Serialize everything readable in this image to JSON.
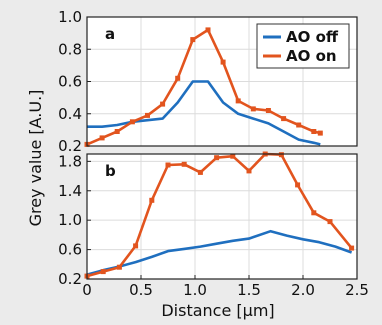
{
  "chart_data": {
    "type": "line",
    "xlabel": "Distance [μm]",
    "ylabel": "Grey value [A.U.]",
    "xlim": [
      0,
      2.5
    ],
    "x_ticks": [
      "0",
      "0.5",
      "1.0",
      "1.5",
      "2.0",
      "2.5"
    ],
    "grid": true,
    "legend": {
      "placement": "top-right",
      "entries": [
        {
          "name": "AO off",
          "color": "#1f6fbf"
        },
        {
          "name": "AO on",
          "color": "#e2541e"
        }
      ]
    },
    "panels": [
      {
        "label": "a",
        "ylim": [
          0.2,
          1.0
        ],
        "y_ticks": [
          "0.2",
          "0.4",
          "0.6",
          "0.8",
          "1.0"
        ],
        "series": [
          {
            "name": "AO off",
            "color": "#1f6fbf",
            "markers": false,
            "x": [
              0,
              0.14,
              0.28,
              0.42,
              0.56,
              0.7,
              0.84,
              0.98,
              1.12,
              1.26,
              1.4,
              1.54,
              1.68,
              1.82,
              1.96,
              2.1,
              2.16
            ],
            "y": [
              0.32,
              0.32,
              0.33,
              0.35,
              0.36,
              0.37,
              0.47,
              0.6,
              0.6,
              0.47,
              0.4,
              0.37,
              0.34,
              0.29,
              0.24,
              0.22,
              0.21
            ]
          },
          {
            "name": "AO on",
            "color": "#e2541e",
            "markers": true,
            "x": [
              0,
              0.14,
              0.28,
              0.42,
              0.56,
              0.7,
              0.84,
              0.98,
              1.12,
              1.26,
              1.4,
              1.54,
              1.68,
              1.82,
              1.96,
              2.1,
              2.16
            ],
            "y": [
              0.21,
              0.25,
              0.29,
              0.35,
              0.39,
              0.46,
              0.62,
              0.86,
              0.92,
              0.72,
              0.48,
              0.43,
              0.42,
              0.37,
              0.33,
              0.29,
              0.28
            ]
          }
        ]
      },
      {
        "label": "b",
        "ylim": [
          0.2,
          1.9
        ],
        "y_ticks": [
          "0.2",
          "0.6",
          "1.0",
          "1.4",
          "1.8"
        ],
        "series": [
          {
            "name": "AO off",
            "color": "#1f6fbf",
            "markers": false,
            "x": [
              0,
              0.15,
              0.3,
              0.45,
              0.6,
              0.75,
              0.9,
              1.05,
              1.2,
              1.35,
              1.5,
              1.7,
              1.85,
              2.0,
              2.15,
              2.3,
              2.45
            ],
            "y": [
              0.26,
              0.32,
              0.37,
              0.43,
              0.5,
              0.58,
              0.61,
              0.64,
              0.68,
              0.72,
              0.75,
              0.85,
              0.79,
              0.74,
              0.7,
              0.64,
              0.56
            ]
          },
          {
            "name": "AO on",
            "color": "#e2541e",
            "markers": true,
            "x": [
              0,
              0.15,
              0.3,
              0.45,
              0.6,
              0.75,
              0.9,
              1.05,
              1.2,
              1.35,
              1.5,
              1.65,
              1.8,
              1.95,
              2.1,
              2.25,
              2.45
            ],
            "y": [
              0.24,
              0.3,
              0.36,
              0.65,
              1.27,
              1.75,
              1.76,
              1.65,
              1.85,
              1.87,
              1.67,
              1.9,
              1.89,
              1.48,
              1.1,
              0.98,
              0.62
            ]
          }
        ]
      }
    ]
  }
}
